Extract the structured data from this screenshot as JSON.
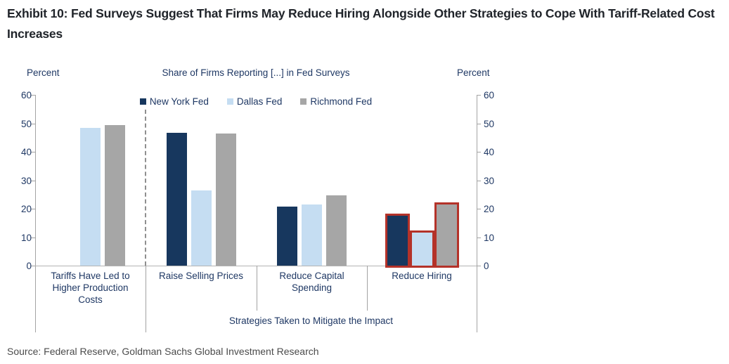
{
  "header": {
    "title": "Exhibit 10: Fed Surveys Suggest That Firms May Reduce Hiring Alongside Other Strategies to Cope With Tariff-Related Cost Increases"
  },
  "chart_data": {
    "type": "bar",
    "title": "Share of Firms Reporting [...] in Fed Surveys",
    "left_axis_title": "Percent",
    "right_axis_title": "Percent",
    "ylim": [
      0,
      60
    ],
    "yticks": [
      0,
      10,
      20,
      30,
      40,
      50,
      60
    ],
    "grid": "off",
    "legend_position": "top-center",
    "categories": [
      "Tariffs Have Led to Higher Production Costs",
      "Raise Selling Prices",
      "Reduce Capital Spending",
      "Reduce Hiring"
    ],
    "category_label_lines": [
      [
        "Tariffs Have Led to",
        "Higher Production",
        "Costs"
      ],
      [
        "Raise Selling Prices"
      ],
      [
        "Reduce Capital",
        "Spending"
      ],
      [
        "Reduce Hiring"
      ]
    ],
    "series": [
      {
        "name": "New York Fed",
        "color": "#17375e",
        "values": [
          null,
          46.7,
          20.8,
          17.5
        ]
      },
      {
        "name": "Dallas Fed",
        "color": "#c5ddf2",
        "values": [
          48.5,
          26.5,
          21.5,
          11.5
        ]
      },
      {
        "name": "Richmond Fed",
        "color": "#a6a6a6",
        "values": [
          49.5,
          46.3,
          24.8,
          21.5
        ]
      }
    ],
    "highlighted_category_index": 3,
    "highlight_outline_color": "#b43229",
    "dashed_separator_after_category_index": 0,
    "group_axis_label": "Strategies Taken to Mitigate the Impact",
    "group_axis_label_spans_categories": [
      1,
      2,
      3
    ]
  },
  "footer": {
    "source": "Source: Federal Reserve, Goldman Sachs Global Investment Research"
  }
}
